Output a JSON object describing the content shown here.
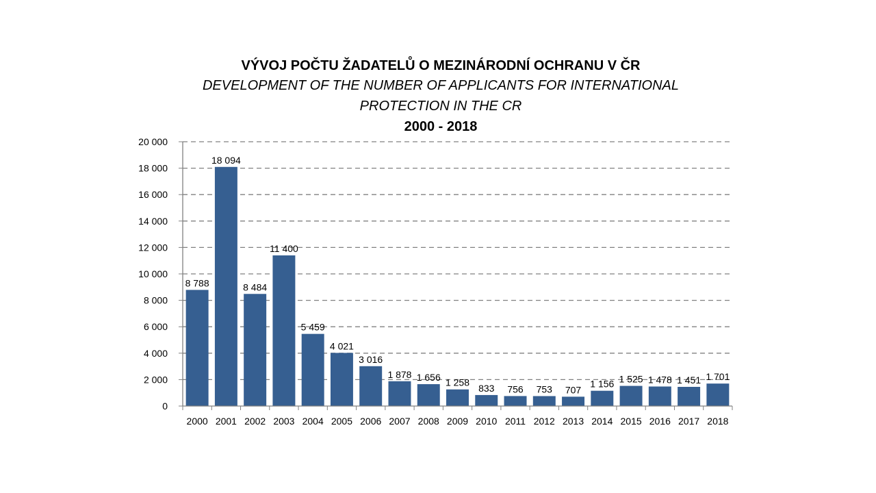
{
  "chart_data": {
    "type": "bar",
    "title": "VÝVOJ POČTU ŽADATELŮ O MEZINÁRODNÍ OCHRANU V ČR",
    "subtitle_lines": [
      "DEVELOPMENT OF THE NUMBER OF APPLICANTS FOR INTERNATIONAL",
      "PROTECTION IN THE CR"
    ],
    "period": "2000 - 2018",
    "categories": [
      "2000",
      "2001",
      "2002",
      "2003",
      "2004",
      "2005",
      "2006",
      "2007",
      "2008",
      "2009",
      "2010",
      "2011",
      "2012",
      "2013",
      "2014",
      "2015",
      "2016",
      "2017",
      "2018"
    ],
    "values": [
      8788,
      18094,
      8484,
      11400,
      5459,
      4021,
      3016,
      1878,
      1656,
      1258,
      833,
      756,
      753,
      707,
      1156,
      1525,
      1478,
      1451,
      1701
    ],
    "value_labels": [
      "8 788",
      "18 094",
      "8 484",
      "11 400",
      "5 459",
      "4 021",
      "3 016",
      "1 878",
      "1 656",
      "1 258",
      "833",
      "756",
      "753",
      "707",
      "1 156",
      "1 525",
      "1 478",
      "1 451",
      "1 701"
    ],
    "y_ticks": [
      0,
      2000,
      4000,
      6000,
      8000,
      10000,
      12000,
      14000,
      16000,
      18000,
      20000
    ],
    "y_tick_labels": [
      "0",
      "2 000",
      "4 000",
      "6 000",
      "8 000",
      "10 000",
      "12 000",
      "14 000",
      "16 000",
      "18 000",
      "20 000"
    ],
    "ylim": [
      0,
      20000
    ],
    "grid": true,
    "bar_color": "#365F91",
    "grid_color": "#808080"
  }
}
